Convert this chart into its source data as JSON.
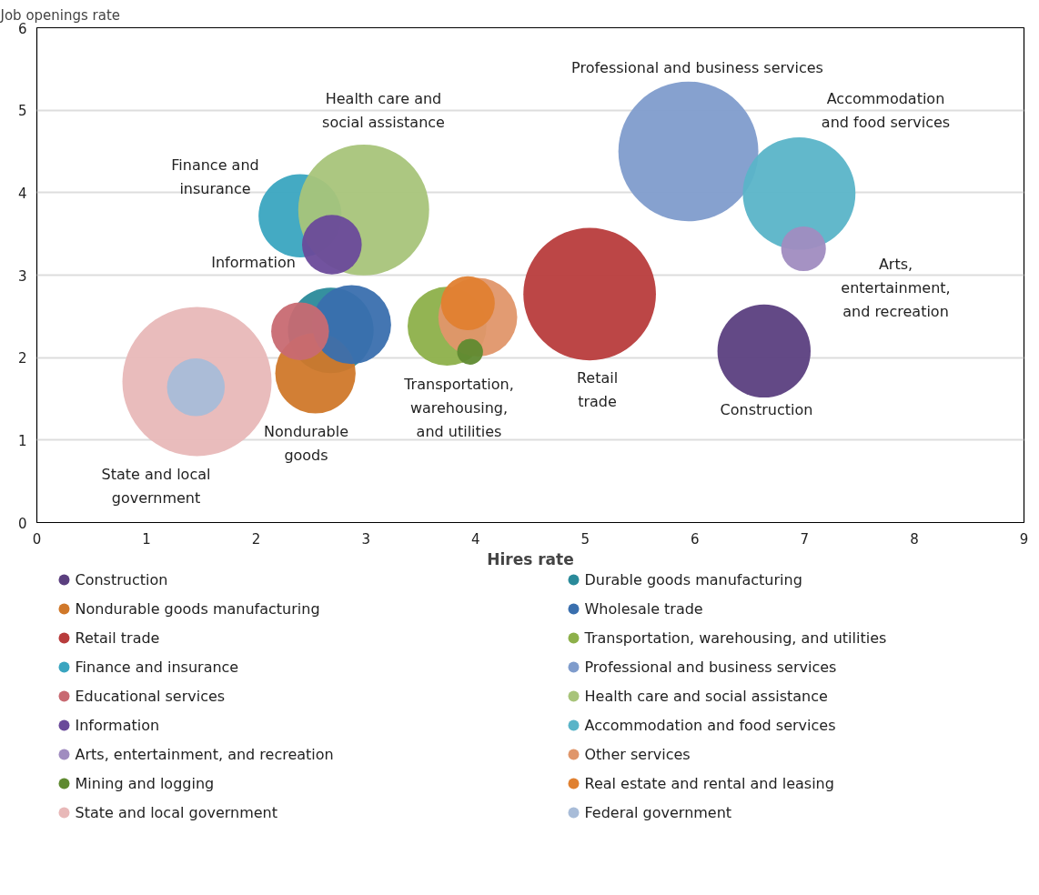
{
  "chart_data": {
    "type": "bubble",
    "xlabel": "Hires rate",
    "ylabel": "Job openings rate",
    "xlim": [
      0,
      9
    ],
    "ylim": [
      0,
      6
    ],
    "xticks": [
      0,
      1,
      2,
      3,
      4,
      5,
      6,
      7,
      8,
      9
    ],
    "yticks": [
      0,
      1,
      2,
      3,
      4,
      5,
      6
    ],
    "grid": "y",
    "legend": "bottom",
    "series": [
      {
        "name": "Construction",
        "color": "#5b3f7f",
        "x": [
          6.63
        ],
        "values": [
          2.08
        ],
        "sizes": [
          0.39
        ]
      },
      {
        "name": "Durable goods manufacturing",
        "color": "#2a8a9a",
        "x": [
          2.68
        ],
        "values": [
          2.33
        ],
        "sizes": [
          0.33
        ]
      },
      {
        "name": "Nondurable goods manufacturing",
        "color": "#d0782a",
        "x": [
          2.54
        ],
        "values": [
          1.81
        ],
        "sizes": [
          0.29
        ]
      },
      {
        "name": "Wholesale trade",
        "color": "#3a6fae",
        "x": [
          2.87
        ],
        "values": [
          2.4
        ],
        "sizes": [
          0.28
        ]
      },
      {
        "name": "Retail trade",
        "color": "#b83c3c",
        "x": [
          5.04
        ],
        "values": [
          2.77
        ],
        "sizes": [
          0.79
        ]
      },
      {
        "name": "Transportation, warehousing, and utilities",
        "color": "#8db04a",
        "x": [
          3.74
        ],
        "values": [
          2.38
        ],
        "sizes": [
          0.28
        ]
      },
      {
        "name": "Finance and insurance",
        "color": "#3aa5c0",
        "x": [
          2.4
        ],
        "values": [
          3.72
        ],
        "sizes": [
          0.31
        ]
      },
      {
        "name": "Professional and business services",
        "color": "#7f9ccc",
        "x": [
          5.94
        ],
        "values": [
          4.5
        ],
        "sizes": [
          0.88
        ]
      },
      {
        "name": "Educational services",
        "color": "#c86a72",
        "x": [
          2.4
        ],
        "values": [
          2.32
        ],
        "sizes": [
          0.15
        ]
      },
      {
        "name": "Health care and social assistance",
        "color": "#a8c47a",
        "x": [
          2.98
        ],
        "values": [
          3.79
        ],
        "sizes": [
          0.77
        ]
      },
      {
        "name": "Information",
        "color": "#6a4a9a",
        "x": [
          2.69
        ],
        "values": [
          3.37
        ],
        "sizes": [
          0.16
        ]
      },
      {
        "name": "Accommodation and food services",
        "color": "#5ab4c8",
        "x": [
          6.95
        ],
        "values": [
          3.99
        ],
        "sizes": [
          0.57
        ]
      },
      {
        "name": "Arts, entertainment, and recreation",
        "color": "#a08cc0",
        "x": [
          6.99
        ],
        "values": [
          3.32
        ],
        "sizes": [
          0.09
        ]
      },
      {
        "name": "Other services",
        "color": "#e0966a",
        "x": [
          4.02
        ],
        "values": [
          2.49
        ],
        "sizes": [
          0.28
        ]
      },
      {
        "name": "Mining and logging",
        "color": "#5f8a30",
        "x": [
          3.95
        ],
        "values": [
          2.07
        ],
        "sizes": [
          0.03
        ]
      },
      {
        "name": "Real estate and rental and leasing",
        "color": "#e08030",
        "x": [
          3.93
        ],
        "values": [
          2.66
        ],
        "sizes": [
          0.13
        ]
      },
      {
        "name": "State and local government",
        "color": "#e8b8b8",
        "x": [
          1.46
        ],
        "values": [
          1.71
        ],
        "sizes": [
          1
        ]
      },
      {
        "name": "Federal government",
        "color": "#a8bcd8",
        "x": [
          1.45
        ],
        "values": [
          1.64
        ],
        "sizes": [
          0.15
        ]
      }
    ],
    "annotations": [
      "Professional and business services",
      "Accommodation\nand food services",
      "Health care and\nsocial assistance",
      "Finance and\ninsurance",
      "Information",
      "Arts,\nentertainment,\nand recreation",
      "Retail\ntrade",
      "Construction",
      "Transportation,\nwarehousing,\nand utilities",
      "Nondurable\ngoods",
      "State and local\ngovernment"
    ]
  }
}
